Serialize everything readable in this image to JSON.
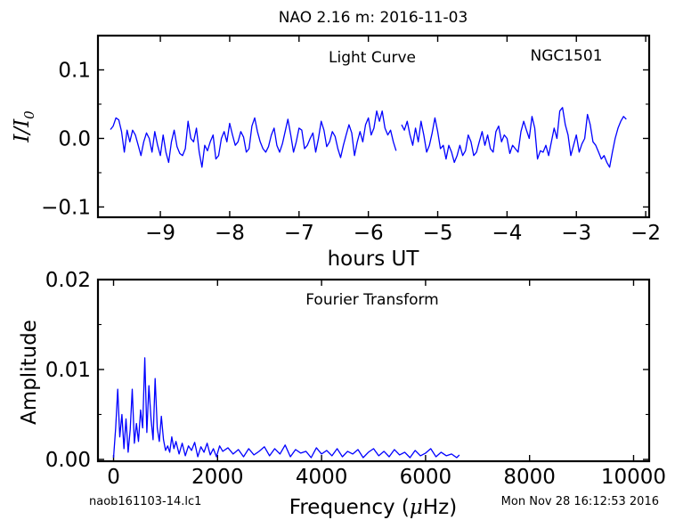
{
  "figure": {
    "title": "NAO 2.16 m:  2016-11-03",
    "footer_left": "naob161103-14.lc1",
    "footer_right": "Mon Nov 28 16:12:53 2016"
  },
  "chart_data": [
    {
      "type": "line",
      "title": "Light Curve",
      "annotation": "NGC1501",
      "xlabel": "hours UT",
      "ylabel_main": "I",
      "ylabel_sep": "/",
      "ylabel_sub_base": "I",
      "ylabel_sub": "0",
      "xlim": [
        -9.9,
        -1.95
      ],
      "ylim": [
        -0.115,
        0.15
      ],
      "xticks": [
        -9,
        -8,
        -7,
        -6,
        -5,
        -4,
        -3,
        -2
      ],
      "xtick_labels": [
        "−9",
        "−8",
        "−7",
        "−6",
        "−5",
        "−4",
        "−3",
        "−2"
      ],
      "yticks": [
        0.1,
        0.0,
        -0.1
      ],
      "ytick_labels": [
        "0.1",
        "0.0",
        "−0.1"
      ],
      "grid": false,
      "color": "#0000ff",
      "segments": [
        {
          "x": [
            -9.72,
            -9.68,
            -9.64,
            -9.6,
            -9.56,
            -9.52,
            -9.48,
            -9.44,
            -9.4,
            -9.36,
            -9.32,
            -9.28,
            -9.24,
            -9.2,
            -9.16,
            -9.12,
            -9.08,
            -9.04,
            -9.0,
            -8.96,
            -8.92,
            -8.88,
            -8.84,
            -8.8,
            -8.76,
            -8.72,
            -8.68,
            -8.64,
            -8.6,
            -8.56,
            -8.52,
            -8.48,
            -8.44,
            -8.4,
            -8.36,
            -8.32,
            -8.28,
            -8.24,
            -8.2,
            -8.16,
            -8.12,
            -8.08,
            -8.04,
            -8.0,
            -7.96,
            -7.92,
            -7.88,
            -7.84,
            -7.8,
            -7.76,
            -7.72,
            -7.68,
            -7.64,
            -7.6,
            -7.56,
            -7.52,
            -7.48,
            -7.44,
            -7.4,
            -7.36,
            -7.32,
            -7.28,
            -7.24,
            -7.2,
            -7.16,
            -7.12,
            -7.08,
            -7.04,
            -7.0,
            -6.96,
            -6.92,
            -6.88,
            -6.84,
            -6.8,
            -6.76,
            -6.72,
            -6.68,
            -6.64,
            -6.6,
            -6.56,
            -6.52,
            -6.48,
            -6.44,
            -6.4,
            -6.36,
            -6.32,
            -6.28,
            -6.24,
            -6.2,
            -6.16,
            -6.12,
            -6.08,
            -6.04,
            -6.0,
            -5.96,
            -5.92,
            -5.88,
            -5.84,
            -5.8,
            -5.76,
            -5.72,
            -5.68,
            -5.64,
            -5.6
          ],
          "y": [
            0.013,
            0.018,
            0.03,
            0.027,
            0.01,
            -0.02,
            0.012,
            -0.005,
            0.012,
            0.005,
            -0.01,
            -0.025,
            -0.005,
            0.008,
            0.0,
            -0.02,
            0.01,
            -0.01,
            -0.025,
            0.005,
            -0.02,
            -0.035,
            -0.005,
            0.012,
            -0.012,
            -0.022,
            -0.025,
            -0.015,
            0.025,
            0.0,
            -0.005,
            0.015,
            -0.02,
            -0.042,
            -0.01,
            -0.018,
            -0.005,
            0.005,
            -0.03,
            -0.025,
            0.0,
            0.01,
            -0.005,
            0.022,
            0.005,
            -0.01,
            -0.005,
            0.01,
            0.002,
            -0.02,
            -0.015,
            0.018,
            0.03,
            0.01,
            -0.005,
            -0.015,
            -0.02,
            -0.012,
            0.005,
            0.015,
            -0.01,
            -0.02,
            -0.008,
            0.01,
            0.028,
            0.005,
            -0.02,
            -0.005,
            0.015,
            0.012,
            -0.015,
            -0.01,
            0.0,
            0.008,
            -0.02,
            0.0,
            0.025,
            0.012,
            -0.012,
            -0.005,
            0.01,
            0.003,
            -0.015,
            -0.028,
            -0.01,
            0.005,
            0.02,
            0.008,
            -0.025,
            -0.005,
            0.01,
            -0.005,
            0.02,
            0.03,
            0.005,
            0.015,
            0.04,
            0.025,
            0.04,
            0.015,
            0.005,
            0.012,
            -0.005,
            -0.018
          ]
        },
        {
          "x": [
            -5.52,
            -5.48,
            -5.44,
            -5.4,
            -5.36,
            -5.32,
            -5.28,
            -5.24,
            -5.2,
            -5.16,
            -5.12,
            -5.08,
            -5.04,
            -5.0,
            -4.96,
            -4.92,
            -4.88,
            -4.84,
            -4.8,
            -4.76,
            -4.72,
            -4.68,
            -4.64,
            -4.6,
            -4.56,
            -4.52,
            -4.48,
            -4.44,
            -4.4,
            -4.36,
            -4.32,
            -4.28,
            -4.24,
            -4.2,
            -4.16,
            -4.12,
            -4.08,
            -4.04,
            -4.0,
            -3.96,
            -3.92,
            -3.88,
            -3.84,
            -3.8,
            -3.76,
            -3.72,
            -3.68,
            -3.64,
            -3.6,
            -3.56,
            -3.52,
            -3.48,
            -3.44,
            -3.4,
            -3.36,
            -3.32,
            -3.28,
            -3.24,
            -3.2,
            -3.16,
            -3.12,
            -3.08,
            -3.04,
            -3.0,
            -2.96,
            -2.92,
            -2.88,
            -2.84,
            -2.8,
            -2.76,
            -2.72,
            -2.68,
            -2.64,
            -2.6,
            -2.56,
            -2.52,
            -2.48,
            -2.44,
            -2.4,
            -2.36,
            -2.32,
            -2.28
          ],
          "y": [
            0.02,
            0.012,
            0.025,
            0.005,
            -0.01,
            0.015,
            -0.005,
            0.025,
            0.005,
            -0.02,
            -0.01,
            0.008,
            0.03,
            0.01,
            -0.015,
            -0.01,
            -0.03,
            -0.01,
            -0.02,
            -0.035,
            -0.025,
            -0.01,
            -0.025,
            -0.018,
            0.005,
            -0.005,
            -0.025,
            -0.02,
            -0.005,
            0.01,
            -0.01,
            0.005,
            -0.015,
            -0.02,
            0.01,
            0.018,
            -0.005,
            0.005,
            0.0,
            -0.022,
            -0.01,
            -0.015,
            -0.02,
            0.01,
            0.025,
            0.012,
            0.0,
            0.032,
            0.015,
            -0.03,
            -0.018,
            -0.02,
            -0.01,
            -0.025,
            -0.005,
            0.015,
            0.0,
            0.04,
            0.045,
            0.02,
            0.005,
            -0.025,
            -0.01,
            0.005,
            -0.02,
            -0.008,
            0.0,
            0.035,
            0.02,
            -0.005,
            -0.01,
            -0.02,
            -0.03,
            -0.025,
            -0.035,
            -0.042,
            -0.02,
            0.0,
            0.015,
            0.025,
            0.032,
            0.028
          ]
        }
      ]
    },
    {
      "type": "line",
      "title": "Fourier Transform",
      "xlabel_pre": "Frequency (",
      "xlabel_mu": "μ",
      "xlabel_post": "Hz)",
      "ylabel": "Amplitude",
      "xlim": [
        -300,
        10300
      ],
      "ylim": [
        -0.0002,
        0.02
      ],
      "xticks": [
        0,
        2000,
        4000,
        6000,
        8000,
        10000
      ],
      "xtick_labels": [
        "0",
        "2000",
        "4000",
        "6000",
        "8000",
        "10000"
      ],
      "yticks": [
        0.02,
        0.01,
        0.0
      ],
      "ytick_labels": [
        "0.02",
        "0.01",
        "0.00"
      ],
      "grid": false,
      "color": "#0000ff",
      "x": [
        0,
        40,
        80,
        120,
        160,
        200,
        240,
        280,
        320,
        360,
        400,
        440,
        480,
        520,
        560,
        600,
        640,
        680,
        720,
        760,
        800,
        840,
        880,
        920,
        960,
        1000,
        1040,
        1080,
        1120,
        1160,
        1200,
        1260,
        1320,
        1380,
        1440,
        1500,
        1560,
        1620,
        1680,
        1740,
        1800,
        1860,
        1920,
        1980,
        2040,
        2100,
        2200,
        2300,
        2400,
        2500,
        2600,
        2700,
        2800,
        2900,
        3000,
        3100,
        3200,
        3300,
        3400,
        3500,
        3600,
        3700,
        3800,
        3900,
        4000,
        4100,
        4200,
        4300,
        4400,
        4500,
        4600,
        4700,
        4800,
        4900,
        5000,
        5100,
        5200,
        5300,
        5400,
        5500,
        5600,
        5700,
        5800,
        5900,
        6000,
        6100,
        6200,
        6300,
        6400,
        6500,
        6600,
        6650
      ],
      "y": [
        0.0002,
        0.0035,
        0.0078,
        0.0025,
        0.005,
        0.0012,
        0.0045,
        0.0008,
        0.0033,
        0.0078,
        0.0018,
        0.004,
        0.002,
        0.0055,
        0.0035,
        0.0113,
        0.003,
        0.0082,
        0.0045,
        0.0022,
        0.009,
        0.0035,
        0.002,
        0.0048,
        0.0022,
        0.001,
        0.0015,
        0.0008,
        0.0025,
        0.0012,
        0.002,
        0.0006,
        0.0018,
        0.0004,
        0.0015,
        0.001,
        0.0019,
        0.0003,
        0.0014,
        0.0008,
        0.0018,
        0.0005,
        0.0012,
        0.0003,
        0.0015,
        0.0009,
        0.0013,
        0.0006,
        0.0011,
        0.0003,
        0.0012,
        0.0005,
        0.0009,
        0.0014,
        0.0004,
        0.0012,
        0.0006,
        0.0016,
        0.0003,
        0.0011,
        0.0007,
        0.0009,
        0.0002,
        0.0013,
        0.0006,
        0.001,
        0.0004,
        0.0012,
        0.0003,
        0.0009,
        0.0006,
        0.0011,
        0.0002,
        0.0008,
        0.0012,
        0.0004,
        0.0009,
        0.0003,
        0.0011,
        0.0005,
        0.0008,
        0.0002,
        0.001,
        0.0004,
        0.0007,
        0.0012,
        0.0003,
        0.0008,
        0.0004,
        0.0006,
        0.0002,
        0.0005
      ]
    }
  ]
}
